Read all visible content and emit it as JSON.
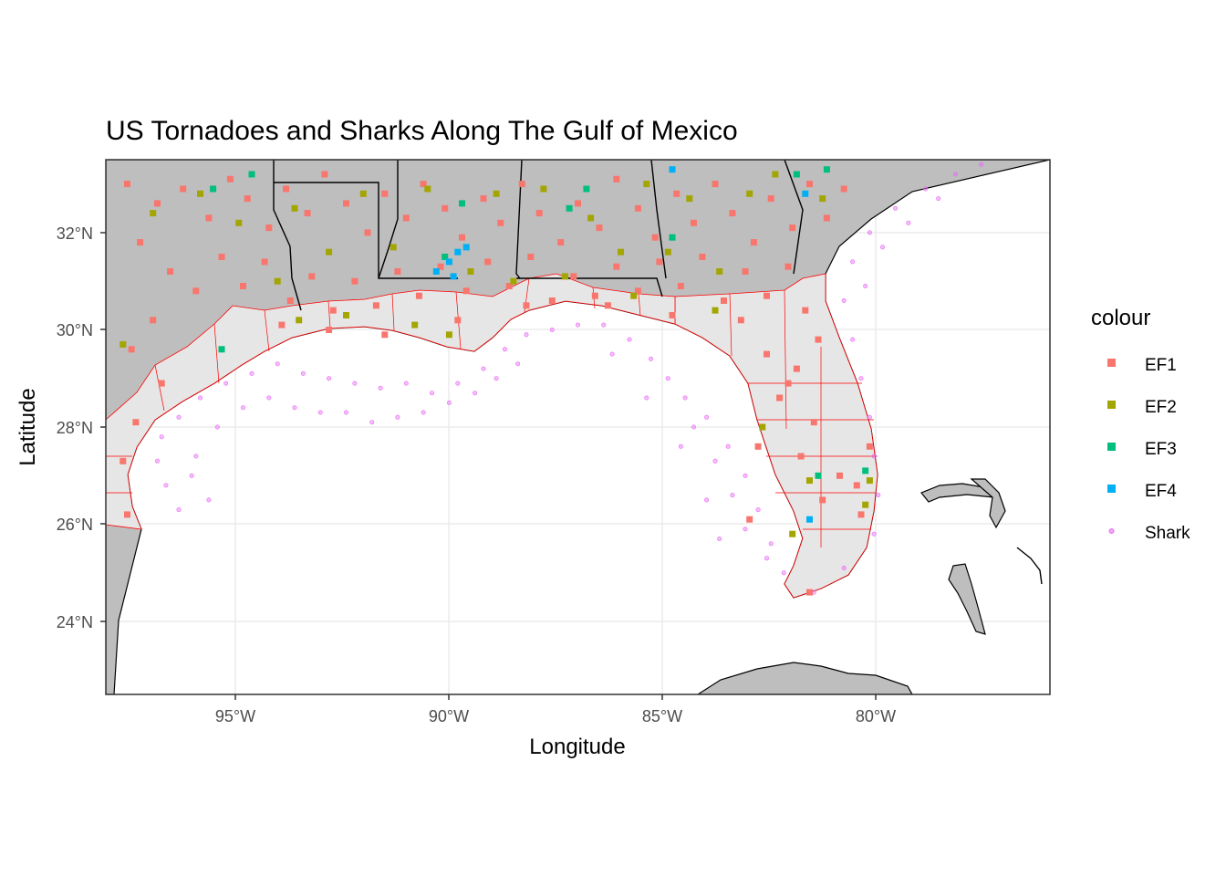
{
  "chart_data": {
    "type": "scatter",
    "title": "US Tornadoes and Sharks Along The Gulf of Mexico",
    "xlabel": "Longitude",
    "ylabel": "Latitude",
    "xlim": [
      -98.0,
      -76.0
    ],
    "ylim": [
      22.5,
      33.5
    ],
    "x_ticks": [
      {
        "value": -95,
        "label": "95°W"
      },
      {
        "value": -90,
        "label": "90°W"
      },
      {
        "value": -85,
        "label": "85°W"
      },
      {
        "value": -80,
        "label": "80°W"
      }
    ],
    "y_ticks": [
      {
        "value": 24,
        "label": "24°N"
      },
      {
        "value": 26,
        "label": "26°N"
      },
      {
        "value": 28,
        "label": "28°N"
      },
      {
        "value": 30,
        "label": "30°N"
      },
      {
        "value": 32,
        "label": "32°N"
      }
    ],
    "grid": true,
    "legend": {
      "title": "colour",
      "placement": "right",
      "entries": [
        {
          "label": "EF1",
          "color": "#F8766D",
          "shape": "square"
        },
        {
          "label": "EF2",
          "color": "#A3A500",
          "shape": "square"
        },
        {
          "label": "EF3",
          "color": "#00BF7D",
          "shape": "square"
        },
        {
          "label": "EF4",
          "color": "#00B0F6",
          "shape": "square"
        },
        {
          "label": "Shark",
          "color": "#E76BF3",
          "shape": "circle"
        }
      ]
    },
    "series": [
      {
        "name": "EF1",
        "color": "#F8766D",
        "points": [
          [
            -97.5,
            33.0
          ],
          [
            -96.8,
            32.6
          ],
          [
            -96.2,
            32.9
          ],
          [
            -95.6,
            32.3
          ],
          [
            -95.1,
            33.1
          ],
          [
            -94.7,
            32.7
          ],
          [
            -94.2,
            32.1
          ],
          [
            -93.8,
            32.9
          ],
          [
            -93.3,
            32.4
          ],
          [
            -92.9,
            33.2
          ],
          [
            -92.4,
            32.6
          ],
          [
            -91.9,
            32.0
          ],
          [
            -91.5,
            32.8
          ],
          [
            -91.0,
            32.3
          ],
          [
            -90.6,
            33.0
          ],
          [
            -90.1,
            32.5
          ],
          [
            -89.7,
            31.9
          ],
          [
            -89.2,
            32.7
          ],
          [
            -88.8,
            32.2
          ],
          [
            -88.3,
            33.0
          ],
          [
            -87.9,
            32.4
          ],
          [
            -87.4,
            31.8
          ],
          [
            -87.0,
            32.6
          ],
          [
            -86.5,
            32.1
          ],
          [
            -86.1,
            33.1
          ],
          [
            -85.6,
            32.5
          ],
          [
            -85.2,
            31.9
          ],
          [
            -84.7,
            32.8
          ],
          [
            -84.3,
            32.2
          ],
          [
            -83.8,
            33.0
          ],
          [
            -83.4,
            32.4
          ],
          [
            -82.9,
            31.8
          ],
          [
            -82.5,
            32.7
          ],
          [
            -82.0,
            32.1
          ],
          [
            -81.6,
            33.0
          ],
          [
            -81.2,
            32.3
          ],
          [
            -80.8,
            32.9
          ],
          [
            -97.2,
            31.8
          ],
          [
            -96.5,
            31.2
          ],
          [
            -95.9,
            30.8
          ],
          [
            -95.3,
            31.5
          ],
          [
            -94.8,
            30.9
          ],
          [
            -94.3,
            31.4
          ],
          [
            -93.7,
            30.6
          ],
          [
            -93.2,
            31.1
          ],
          [
            -92.7,
            30.4
          ],
          [
            -92.2,
            31.0
          ],
          [
            -91.7,
            30.5
          ],
          [
            -91.2,
            31.2
          ],
          [
            -90.7,
            30.7
          ],
          [
            -90.2,
            31.3
          ],
          [
            -89.6,
            30.8
          ],
          [
            -89.1,
            31.4
          ],
          [
            -88.6,
            30.9
          ],
          [
            -88.1,
            31.5
          ],
          [
            -87.6,
            30.6
          ],
          [
            -87.1,
            31.1
          ],
          [
            -86.6,
            30.7
          ],
          [
            -86.1,
            31.3
          ],
          [
            -85.6,
            30.8
          ],
          [
            -85.1,
            31.4
          ],
          [
            -84.6,
            30.9
          ],
          [
            -84.1,
            31.5
          ],
          [
            -83.6,
            30.6
          ],
          [
            -83.1,
            31.2
          ],
          [
            -82.6,
            30.7
          ],
          [
            -82.1,
            31.3
          ],
          [
            -81.7,
            30.4
          ],
          [
            -81.4,
            29.8
          ],
          [
            -81.9,
            29.2
          ],
          [
            -82.3,
            28.6
          ],
          [
            -81.5,
            28.1
          ],
          [
            -81.8,
            27.4
          ],
          [
            -80.9,
            27.0
          ],
          [
            -81.3,
            26.5
          ],
          [
            -80.5,
            26.8
          ],
          [
            -80.4,
            26.2
          ],
          [
            -82.1,
            28.9
          ],
          [
            -82.6,
            29.5
          ],
          [
            -83.2,
            30.2
          ],
          [
            -84.8,
            30.3
          ],
          [
            -86.3,
            30.5
          ],
          [
            -88.2,
            30.5
          ],
          [
            -89.8,
            30.2
          ],
          [
            -91.5,
            29.9
          ],
          [
            -92.8,
            30.0
          ],
          [
            -93.9,
            30.1
          ],
          [
            -96.9,
            30.2
          ],
          [
            -97.4,
            29.6
          ],
          [
            -96.7,
            28.9
          ],
          [
            -97.3,
            28.1
          ],
          [
            -97.6,
            27.3
          ],
          [
            -97.5,
            26.2
          ],
          [
            -81.6,
            24.6
          ],
          [
            -83.0,
            26.1
          ],
          [
            -82.8,
            27.6
          ],
          [
            -80.2,
            27.6
          ]
        ]
      },
      {
        "name": "EF2",
        "color": "#A3A500",
        "points": [
          [
            -97.6,
            29.7
          ],
          [
            -96.9,
            32.4
          ],
          [
            -95.8,
            32.8
          ],
          [
            -94.9,
            32.2
          ],
          [
            -94.0,
            31.0
          ],
          [
            -93.6,
            32.5
          ],
          [
            -92.8,
            31.6
          ],
          [
            -92.0,
            32.8
          ],
          [
            -91.3,
            31.7
          ],
          [
            -90.5,
            32.9
          ],
          [
            -90.0,
            29.9
          ],
          [
            -89.5,
            31.2
          ],
          [
            -88.9,
            32.8
          ],
          [
            -88.5,
            31.0
          ],
          [
            -87.8,
            32.9
          ],
          [
            -87.3,
            31.1
          ],
          [
            -86.7,
            32.3
          ],
          [
            -86.0,
            31.6
          ],
          [
            -85.4,
            33.0
          ],
          [
            -84.9,
            31.6
          ],
          [
            -84.4,
            32.7
          ],
          [
            -83.7,
            31.2
          ],
          [
            -83.0,
            32.8
          ],
          [
            -82.4,
            33.2
          ],
          [
            -81.3,
            32.7
          ],
          [
            -82.7,
            28.0
          ],
          [
            -81.6,
            26.9
          ],
          [
            -80.2,
            26.9
          ],
          [
            -80.3,
            26.4
          ],
          [
            -90.8,
            30.1
          ],
          [
            -93.5,
            30.2
          ],
          [
            -92.4,
            30.3
          ],
          [
            -85.7,
            30.7
          ],
          [
            -83.8,
            30.4
          ],
          [
            -82.0,
            25.8
          ]
        ]
      },
      {
        "name": "EF3",
        "color": "#00BF7D",
        "points": [
          [
            -95.5,
            32.9
          ],
          [
            -94.6,
            33.2
          ],
          [
            -89.7,
            32.6
          ],
          [
            -87.2,
            32.5
          ],
          [
            -86.8,
            32.9
          ],
          [
            -84.8,
            31.9
          ],
          [
            -81.9,
            33.2
          ],
          [
            -81.2,
            33.3
          ],
          [
            -81.4,
            27.0
          ],
          [
            -80.3,
            27.1
          ],
          [
            -90.1,
            31.5
          ],
          [
            -95.3,
            29.6
          ]
        ]
      },
      {
        "name": "EF4",
        "color": "#00B0F6",
        "points": [
          [
            -89.8,
            31.6
          ],
          [
            -90.0,
            31.4
          ],
          [
            -90.3,
            31.2
          ],
          [
            -89.6,
            31.7
          ],
          [
            -84.8,
            33.3
          ],
          [
            -81.7,
            32.8
          ],
          [
            -81.6,
            26.1
          ],
          [
            -89.9,
            31.1
          ]
        ]
      },
      {
        "name": "Shark",
        "color": "#E76BF3",
        "points": [
          [
            -96.3,
            26.3
          ],
          [
            -96.6,
            26.8
          ],
          [
            -96.8,
            27.3
          ],
          [
            -96.7,
            27.8
          ],
          [
            -96.3,
            28.2
          ],
          [
            -95.8,
            28.6
          ],
          [
            -95.2,
            28.9
          ],
          [
            -94.6,
            29.1
          ],
          [
            -94.0,
            29.3
          ],
          [
            -93.4,
            29.1
          ],
          [
            -92.8,
            29.0
          ],
          [
            -92.2,
            28.9
          ],
          [
            -91.6,
            28.8
          ],
          [
            -91.0,
            28.9
          ],
          [
            -90.4,
            28.7
          ],
          [
            -89.8,
            28.9
          ],
          [
            -89.2,
            29.2
          ],
          [
            -88.7,
            29.6
          ],
          [
            -88.2,
            29.9
          ],
          [
            -87.6,
            30.0
          ],
          [
            -87.0,
            30.1
          ],
          [
            -86.4,
            30.1
          ],
          [
            -85.8,
            29.8
          ],
          [
            -85.3,
            29.4
          ],
          [
            -84.9,
            29.0
          ],
          [
            -84.5,
            28.6
          ],
          [
            -84.0,
            28.2
          ],
          [
            -83.5,
            27.6
          ],
          [
            -83.1,
            27.0
          ],
          [
            -82.8,
            26.3
          ],
          [
            -82.5,
            25.6
          ],
          [
            -82.2,
            25.0
          ],
          [
            -81.5,
            24.6
          ],
          [
            -80.8,
            25.1
          ],
          [
            -80.1,
            25.8
          ],
          [
            -80.0,
            26.6
          ],
          [
            -80.1,
            27.4
          ],
          [
            -80.2,
            28.2
          ],
          [
            -80.4,
            29.0
          ],
          [
            -80.6,
            29.8
          ],
          [
            -80.8,
            30.6
          ],
          [
            -80.6,
            31.4
          ],
          [
            -80.2,
            32.0
          ],
          [
            -79.6,
            32.5
          ],
          [
            -78.9,
            32.9
          ],
          [
            -78.2,
            33.2
          ],
          [
            -77.6,
            33.4
          ],
          [
            -95.9,
            27.4
          ],
          [
            -95.4,
            28.0
          ],
          [
            -94.8,
            28.4
          ],
          [
            -94.2,
            28.6
          ],
          [
            -93.6,
            28.4
          ],
          [
            -93.0,
            28.3
          ],
          [
            -92.4,
            28.3
          ],
          [
            -91.8,
            28.1
          ],
          [
            -91.2,
            28.2
          ],
          [
            -90.6,
            28.3
          ],
          [
            -90.0,
            28.5
          ],
          [
            -89.4,
            28.7
          ],
          [
            -88.9,
            29.0
          ],
          [
            -88.4,
            29.3
          ],
          [
            -84.3,
            28.0
          ],
          [
            -83.8,
            27.3
          ],
          [
            -83.4,
            26.6
          ],
          [
            -83.1,
            25.9
          ],
          [
            -82.6,
            25.3
          ],
          [
            -83.7,
            25.7
          ],
          [
            -84.0,
            26.5
          ],
          [
            -84.6,
            27.6
          ],
          [
            -85.4,
            28.6
          ],
          [
            -86.2,
            29.5
          ],
          [
            -80.3,
            30.9
          ],
          [
            -79.9,
            31.7
          ],
          [
            -79.3,
            32.2
          ],
          [
            -78.6,
            32.7
          ],
          [
            -95.6,
            26.5
          ],
          [
            -96.0,
            27.0
          ]
        ]
      }
    ]
  }
}
